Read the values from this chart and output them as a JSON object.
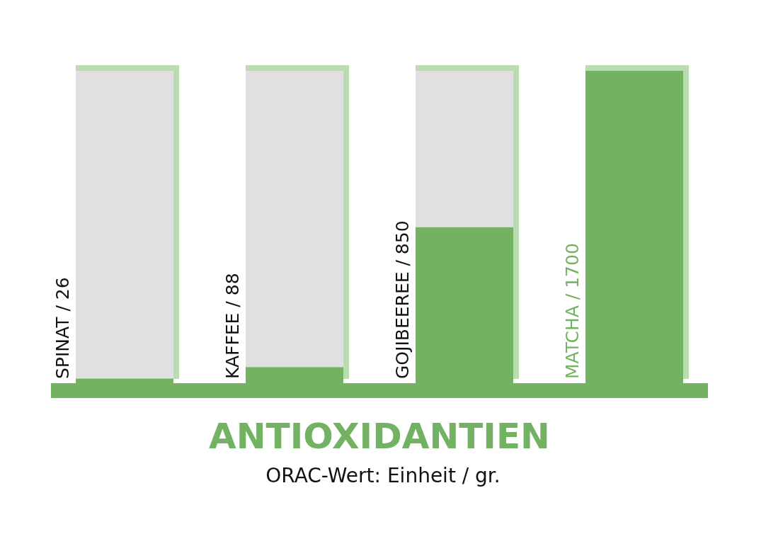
{
  "chart_data": {
    "type": "bar",
    "title": "ANTIOXIDANTIEN",
    "subtitle": "ORAC-Wert: Einheit / gr.",
    "categories": [
      null,
      null,
      null,
      null
    ],
    "stacked": true,
    "series": [
      {
        "color": "#72b262",
        "values": [
          26,
          88,
          850,
          1700
        ],
        "value_labels": [
          "SPINAT / 26",
          "KAFFEE / 88",
          "GOJIBEEREE / 850",
          "MATCHA / 1700"
        ]
      },
      {
        "color": "#e0e0e0",
        "values": [
          1674,
          1612,
          850,
          0
        ]
      }
    ],
    "ylim": [
      0,
      1700
    ],
    "tick_labels": false
  }
}
